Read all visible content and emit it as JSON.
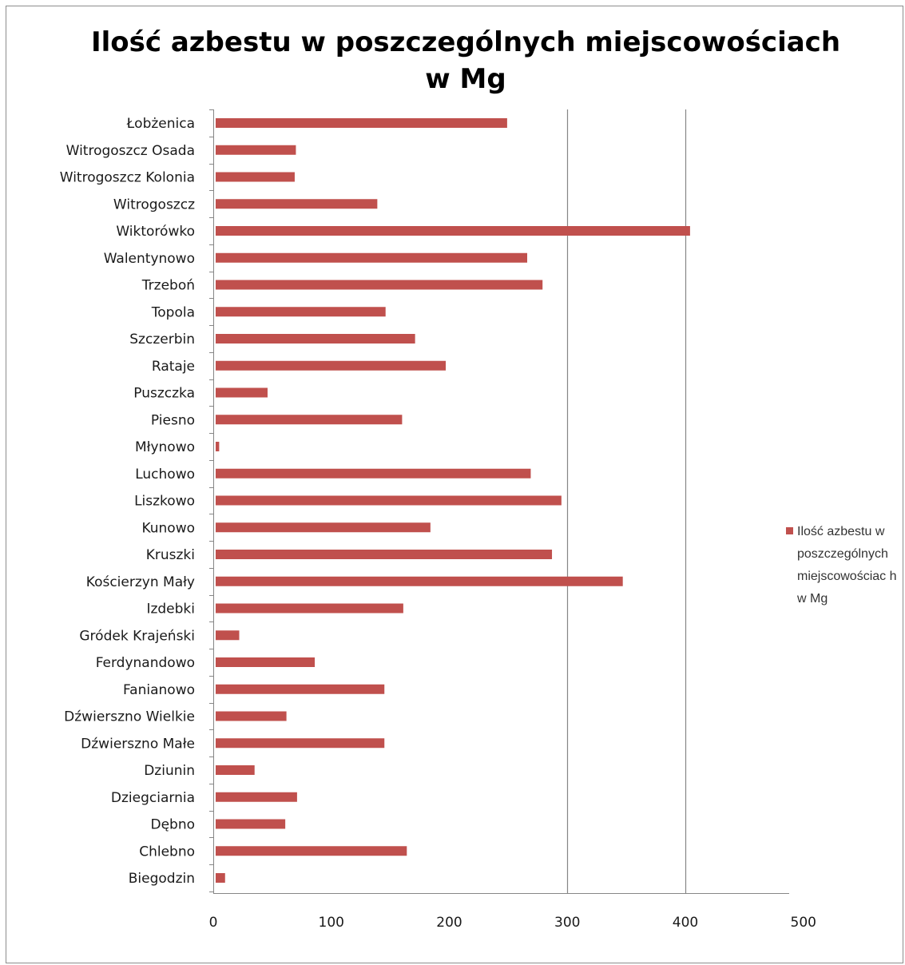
{
  "chart_data": {
    "type": "bar",
    "orientation": "horizontal",
    "title": "Ilość azbestu w poszczególnych miejscowościach\nw Mg",
    "categories": [
      "Łobżenica",
      "Witrogoszcz Osada",
      "Witrogoszcz Kolonia",
      "Witrogoszcz",
      "Wiktorówko",
      "Walentynowo",
      "Trzeboń",
      "Topola",
      "Szczerbin",
      "Rataje",
      "Puszczka",
      "Piesno",
      "Młynowo",
      "Luchowo",
      "Liszkowo",
      "Kunowo",
      "Kruszki",
      "Kościerzyn Mały",
      "Izdebki",
      "Gródek Krajeński",
      "Ferdynandowo",
      "Fanianowo",
      "Dźwierszno Wielkie",
      "Dźwierszno Małe",
      "Dziunin",
      "Dziegciarnia",
      "Dębno",
      "Chlebno",
      "Biegodzin"
    ],
    "series": [
      {
        "name": "Ilość azbestu w poszczególnych miejscowościach w Mg",
        "values": [
          249,
          70,
          69,
          139,
          404,
          266,
          279,
          146,
          171,
          197,
          46,
          160,
          5,
          269,
          295,
          184,
          287,
          347,
          161,
          22,
          86,
          145,
          62,
          145,
          35,
          71,
          61,
          164,
          10
        ]
      }
    ],
    "xlim": [
      0,
      500
    ],
    "xticks": [
      "0",
      "100",
      "200",
      "300",
      "400",
      "500"
    ],
    "xtick_values": [
      0,
      100,
      200,
      300,
      400,
      500
    ],
    "gridlines_at": [
      300,
      400
    ],
    "grid": true,
    "legend_position": "right",
    "legend_label": "Ilość azbestu w poszczególnych miejscowościac h w Mg",
    "colors": {
      "bar": "#c0504d",
      "axis": "#868686",
      "grid": "#868686"
    }
  }
}
